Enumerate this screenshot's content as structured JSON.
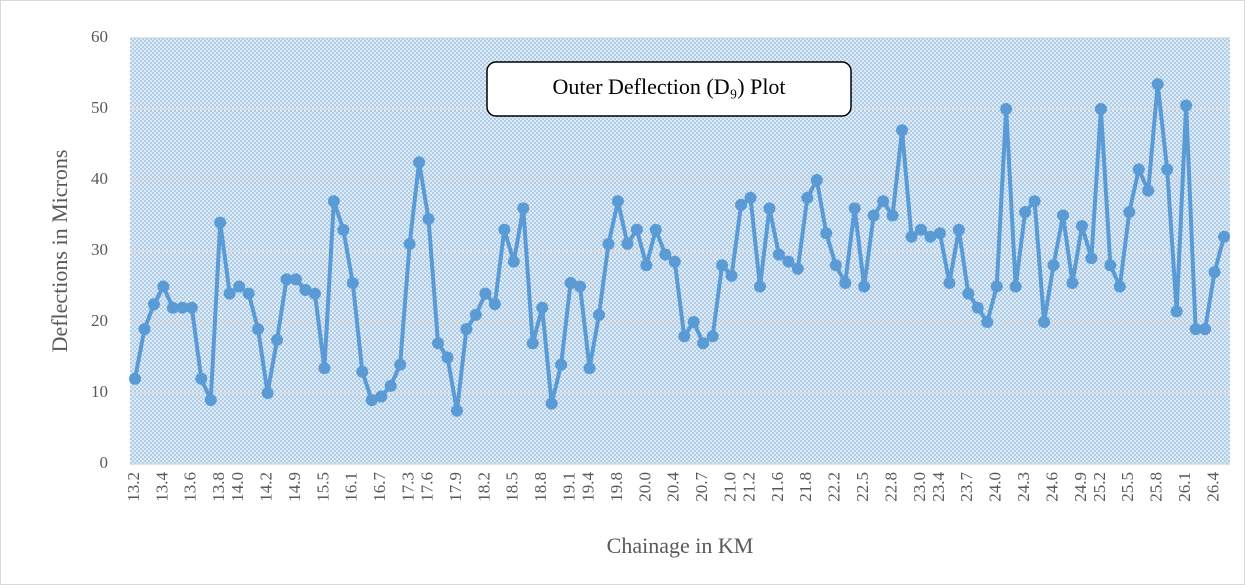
{
  "chart_data": {
    "type": "line",
    "title": "Outer Deflection (D₉) Plot",
    "x_label": "Chainage in KM",
    "y_label": "Deflections in Microns",
    "color": "#5b9bd5",
    "grid": true,
    "ylim": [
      0,
      60
    ],
    "yticks": [
      0,
      10,
      20,
      30,
      40,
      50,
      60
    ],
    "categories": [
      "13.2",
      null,
      null,
      "13.4",
      null,
      null,
      "13.6",
      null,
      null,
      "13.8",
      null,
      "14.0",
      null,
      null,
      "14.2",
      null,
      null,
      "14.9",
      null,
      null,
      "15.5",
      null,
      null,
      "16.1",
      null,
      null,
      "16.7",
      null,
      null,
      "17.3",
      null,
      "17.6",
      null,
      null,
      "17.9",
      null,
      null,
      "18.2",
      null,
      null,
      "18.5",
      null,
      null,
      "18.8",
      null,
      null,
      "19.1",
      null,
      "19.4",
      null,
      null,
      "19.8",
      null,
      null,
      "20.0",
      null,
      null,
      "20.4",
      null,
      null,
      "20.7",
      null,
      null,
      "21.0",
      null,
      "21.2",
      null,
      null,
      "21.6",
      null,
      null,
      "21.8",
      null,
      null,
      "22.2",
      null,
      null,
      "22.5",
      null,
      null,
      "22.8",
      null,
      null,
      "23.0",
      null,
      "23.4",
      null,
      null,
      "23.7",
      null,
      null,
      "24.0",
      null,
      null,
      "24.3",
      null,
      null,
      "24.6",
      null,
      null,
      "24.9",
      null,
      "25.2",
      null,
      null,
      "25.5",
      null,
      null,
      "25.8",
      null,
      null,
      "26.1",
      null,
      null,
      "26.4",
      null
    ],
    "values": [
      12,
      19,
      22.5,
      25,
      22,
      22,
      22,
      12,
      9,
      34,
      24,
      25,
      24,
      19,
      10,
      17.5,
      26,
      26,
      24.5,
      24,
      13.5,
      37,
      33,
      25.5,
      13,
      9,
      9.5,
      11,
      14,
      31,
      42.5,
      34.5,
      17,
      15,
      7.5,
      19,
      21,
      24,
      22.5,
      33,
      28.5,
      36,
      17,
      22,
      8.5,
      14,
      25.5,
      25,
      13.5,
      21,
      31,
      37,
      31,
      33,
      28,
      33,
      29.5,
      28.5,
      18,
      20,
      17,
      18,
      28,
      26.5,
      36.5,
      37.5,
      25,
      36,
      29.5,
      28.5,
      27.5,
      37.5,
      40,
      32.5,
      28,
      25.5,
      36,
      25,
      35,
      37,
      35,
      47,
      32,
      33,
      32,
      32.5,
      25.5,
      33,
      24,
      22,
      20,
      25,
      50,
      25,
      35.5,
      37,
      20,
      28,
      35,
      25.5,
      33.5,
      29,
      50,
      28,
      25,
      35.5,
      41.5,
      38.5,
      53.5,
      41.5,
      21.5,
      50.5,
      19,
      19,
      27,
      32
    ]
  }
}
